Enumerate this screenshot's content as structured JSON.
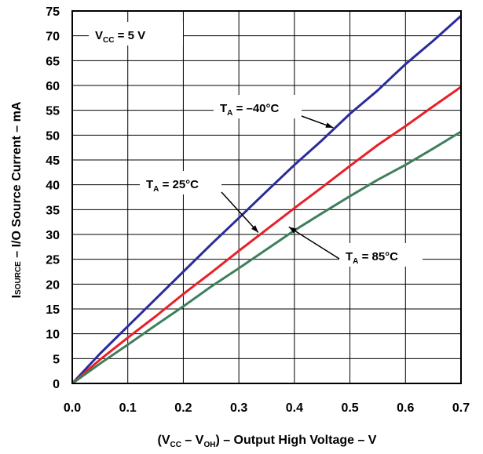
{
  "chart_data": {
    "type": "line",
    "title": "",
    "xlabel": {
      "prefix": "(V",
      "sub1": "CC",
      "mid": " – V",
      "sub2": "OH",
      "suffix": ") – Output High Voltage – V"
    },
    "ylabel": {
      "sub": "SOURCE",
      "main": "I",
      "suffix": " – I/O Source Current – mA"
    },
    "xlim": [
      0,
      0.7
    ],
    "ylim": [
      0,
      75
    ],
    "xticks": [
      "0.0",
      "0.1",
      "0.2",
      "0.3",
      "0.4",
      "0.5",
      "0.6",
      "0.7"
    ],
    "yticks": [
      "0",
      "5",
      "10",
      "15",
      "20",
      "25",
      "30",
      "35",
      "40",
      "45",
      "50",
      "55",
      "60",
      "65",
      "70",
      "75"
    ],
    "grid": true,
    "series": [
      {
        "temp": "-40",
        "color": "#2b2b9a",
        "x": [
          0,
          0.05,
          0.1,
          0.15,
          0.2,
          0.25,
          0.3,
          0.35,
          0.4,
          0.45,
          0.5,
          0.55,
          0.6,
          0.65,
          0.7
        ],
        "y": [
          0,
          6,
          11.5,
          17,
          22.5,
          28,
          33.3,
          38.7,
          44,
          49,
          54.3,
          59,
          64.3,
          69,
          74
        ]
      },
      {
        "temp": "25",
        "color": "#e8202a",
        "x": [
          0,
          0.05,
          0.1,
          0.15,
          0.2,
          0.25,
          0.3,
          0.35,
          0.4,
          0.45,
          0.5,
          0.55,
          0.6,
          0.65,
          0.7
        ],
        "y": [
          0,
          4.8,
          9.2,
          13.5,
          18,
          22.3,
          26.7,
          31,
          35.3,
          39.5,
          43.8,
          48,
          51.8,
          55.8,
          59.7
        ]
      },
      {
        "temp": "85",
        "color": "#3f7f5c",
        "x": [
          0,
          0.05,
          0.1,
          0.15,
          0.2,
          0.25,
          0.3,
          0.35,
          0.4,
          0.45,
          0.5,
          0.55,
          0.6,
          0.65,
          0.7
        ],
        "y": [
          0,
          4,
          7.8,
          11.7,
          15.5,
          19.5,
          23.2,
          27,
          30.8,
          34.3,
          37.7,
          41,
          44,
          47.3,
          50.7
        ]
      }
    ],
    "annotations": [
      {
        "name": "vcc-label",
        "main": "V",
        "sub": "CC",
        "suffix": " = 5 V"
      },
      {
        "name": "label-minus40",
        "main": "T",
        "sub": "A",
        "suffix": " = –40°C"
      },
      {
        "name": "label-25",
        "main": "T",
        "sub": "A",
        "suffix": " = 25°C"
      },
      {
        "name": "label-85",
        "main": "T",
        "sub": "A",
        "suffix": " = 85°C"
      }
    ]
  }
}
